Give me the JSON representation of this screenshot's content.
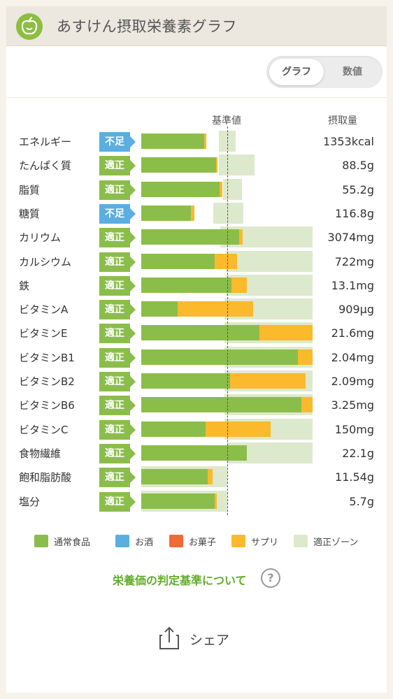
{
  "header": {
    "title": "あすけん摂取栄養素グラフ",
    "logo_icon": "apple-icon"
  },
  "toggle": {
    "graph_label": "グラフ",
    "value_label": "数値",
    "active": "グラフ"
  },
  "columns": {
    "reference_label": "基準値",
    "intake_label": "摂取量"
  },
  "colors": {
    "normal_food": "#8bbd4b",
    "alcohol": "#5aaee0",
    "sweets": "#ef6a35",
    "supplement": "#fbb92c",
    "proper_zone": "#dde9cc",
    "badge_deficient": "#5aaee0",
    "badge_proper": "#8bbd4b"
  },
  "chart_data": {
    "type": "bar",
    "orientation": "horizontal",
    "reference_value": 1.0,
    "categories": [
      "エネルギー",
      "たんぱく質",
      "脂質",
      "糖質",
      "カリウム",
      "カルシウム",
      "鉄",
      "ビタミンA",
      "ビタミンE",
      "ビタミンB1",
      "ビタミンB2",
      "ビタミンB6",
      "ビタミンC",
      "食物繊維",
      "飽和脂肪酸",
      "塩分"
    ],
    "status": [
      "不足",
      "適正",
      "適正",
      "不足",
      "適正",
      "適正",
      "適正",
      "適正",
      "適正",
      "適正",
      "適正",
      "適正",
      "適正",
      "適正",
      "適正",
      "適正"
    ],
    "amounts": [
      "1353kcal",
      "88.5g",
      "55.2g",
      "116.8g",
      "3074mg",
      "722mg",
      "13.1mg",
      "909μg",
      "21.6mg",
      "2.04mg",
      "2.09mg",
      "3.25mg",
      "150mg",
      "22.1g",
      "11.54g",
      "5.7g"
    ],
    "series": [
      {
        "name": "通常食品",
        "values": [
          0.73,
          0.87,
          0.91,
          0.58,
          1.14,
          0.85,
          1.05,
          0.42,
          1.37,
          1.82,
          1.03,
          1.86,
          0.75,
          1.23,
          0.77,
          0.85
        ]
      },
      {
        "name": "サプリ",
        "values": [
          0.03,
          0.02,
          0.03,
          0.04,
          0.04,
          0.26,
          0.18,
          0.88,
          0.63,
          0.18,
          0.88,
          0.14,
          0.75,
          0.0,
          0.06,
          0.03
        ]
      }
    ],
    "proper_zone": [
      [
        0.9,
        1.1
      ],
      [
        0.9,
        1.32
      ],
      [
        0.95,
        1.17
      ],
      [
        0.84,
        1.19
      ],
      [
        0.92,
        2.0
      ],
      [
        0.98,
        2.0
      ],
      [
        0.98,
        2.0
      ],
      [
        0.97,
        2.0
      ],
      [
        0.97,
        2.0
      ],
      [
        0.97,
        2.0
      ],
      [
        0.97,
        2.0
      ],
      [
        0.97,
        2.0
      ],
      [
        0.97,
        2.0
      ],
      [
        1.0,
        2.0
      ],
      [
        0.0,
        1.0
      ],
      [
        0.0,
        1.0
      ]
    ]
  },
  "legend": [
    {
      "label": "通常食品",
      "color": "#8bbd4b"
    },
    {
      "label": "お酒",
      "color": "#5aaee0"
    },
    {
      "label": "お菓子",
      "color": "#ef6a35"
    },
    {
      "label": "サプリ",
      "color": "#fbb92c"
    },
    {
      "label": "適正ゾーン",
      "color": "#dde9cc"
    }
  ],
  "footer": {
    "info_link": "栄養価の判定基準について",
    "help_icon": "?",
    "share_label": "シェア"
  }
}
